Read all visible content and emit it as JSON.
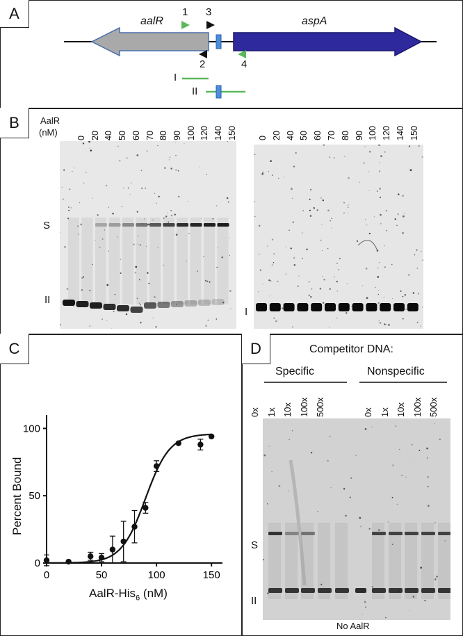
{
  "panelA": {
    "letter": "A",
    "gene_left": "aalR",
    "gene_right": "aspA",
    "primer_1": "1",
    "primer_2": "2",
    "primer_3": "3",
    "primer_4": "4",
    "probe_I": "I",
    "probe_II": "II"
  },
  "panelB": {
    "letter": "B",
    "axis_label_1": "AalR",
    "axis_label_2": "(nM)",
    "left_lanes": [
      "0",
      "20",
      "40",
      "50",
      "60",
      "70",
      "80",
      "90",
      "100",
      "120",
      "140",
      "150"
    ],
    "right_lanes": [
      "0",
      "20",
      "40",
      "50",
      "60",
      "70",
      "80",
      "90",
      "100",
      "120",
      "140",
      "150"
    ],
    "band_S": "S",
    "band_II": "II",
    "band_I": "I"
  },
  "panelC": {
    "letter": "C",
    "chart_data": {
      "type": "scatter",
      "x": [
        0,
        20,
        40,
        50,
        60,
        70,
        80,
        90,
        100,
        120,
        140,
        150
      ],
      "y": [
        2,
        1,
        5,
        4,
        10,
        16,
        27,
        41,
        72,
        89,
        88,
        94
      ],
      "yerr": [
        4,
        0,
        3,
        3,
        10,
        15,
        12,
        4,
        4,
        0,
        4,
        0
      ],
      "xlabel": "AalR-His6 (nM)",
      "xlabel_main": "AalR-His",
      "xlabel_sub": "6",
      "xlabel_tail": " (nM)",
      "ylabel": "Percent Bound",
      "xlim": [
        0,
        160
      ],
      "ylim": [
        0,
        110
      ],
      "xticks": [
        "0",
        "50",
        "100",
        "150"
      ],
      "yticks": [
        "0",
        "50",
        "100"
      ],
      "fit": "sigmoid"
    }
  },
  "panelD": {
    "letter": "D",
    "title": "Competitor DNA:",
    "group_specific": "Specific",
    "group_nonspecific": "Nonspecific",
    "specific_lanes": [
      "0x",
      "1x",
      "10x",
      "100x",
      "500x"
    ],
    "nonspecific_lanes": [
      "0x",
      "1x",
      "10x",
      "100x",
      "500x"
    ],
    "band_S": "S",
    "band_II": "II",
    "no_aalr": "No AalR"
  }
}
